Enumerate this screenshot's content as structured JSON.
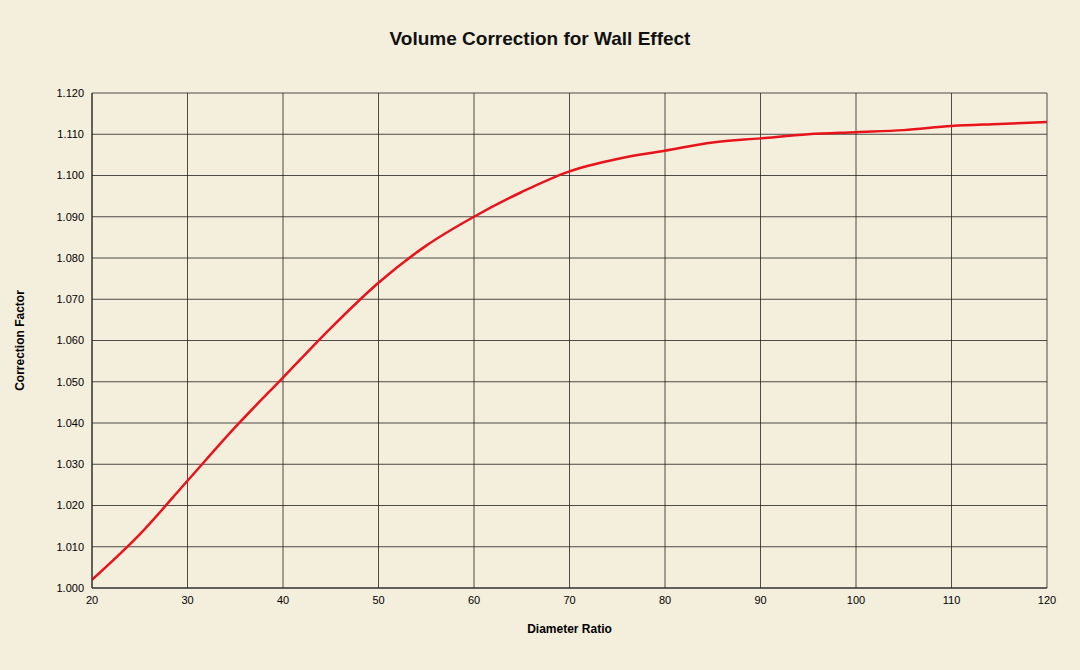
{
  "chart_data": {
    "type": "line",
    "title": "Volume Correction for Wall Effect",
    "x_label": "Diameter Ratio",
    "y_label": "Correction Factor",
    "x": [
      20,
      25,
      30,
      35,
      40,
      45,
      50,
      55,
      60,
      65,
      70,
      75,
      80,
      85,
      90,
      95,
      100,
      105,
      110,
      115,
      120
    ],
    "values": [
      1.002,
      1.013,
      1.026,
      1.039,
      1.051,
      1.063,
      1.074,
      1.083,
      1.09,
      1.096,
      1.101,
      1.104,
      1.106,
      1.108,
      1.109,
      1.11,
      1.1105,
      1.111,
      1.112,
      1.1125,
      1.113
    ],
    "color": "#e8141c",
    "xlim": [
      20,
      120
    ],
    "xticks": [
      20,
      30,
      40,
      50,
      60,
      70,
      80,
      90,
      100,
      110,
      120
    ],
    "ylim": [
      1,
      1.12
    ],
    "yticks": [
      {
        "value": 1,
        "label": "1.000"
      },
      {
        "value": 1.01,
        "label": "1.010"
      },
      {
        "value": 1.02,
        "label": "1.020"
      },
      {
        "value": 1.03,
        "label": "1.030"
      },
      {
        "value": 1.04,
        "label": "1.040"
      },
      {
        "value": 1.05,
        "label": "1.050"
      },
      {
        "value": 1.06,
        "label": "1.060"
      },
      {
        "value": 1.07,
        "label": "1.070"
      },
      {
        "value": 1.08,
        "label": "1.080"
      },
      {
        "value": 1.09,
        "label": "1.090"
      },
      {
        "value": 1.1,
        "label": "1.100"
      },
      {
        "value": 1.11,
        "label": "1.110"
      },
      {
        "value": 1.12,
        "label": "1.120"
      }
    ],
    "grid": true
  }
}
